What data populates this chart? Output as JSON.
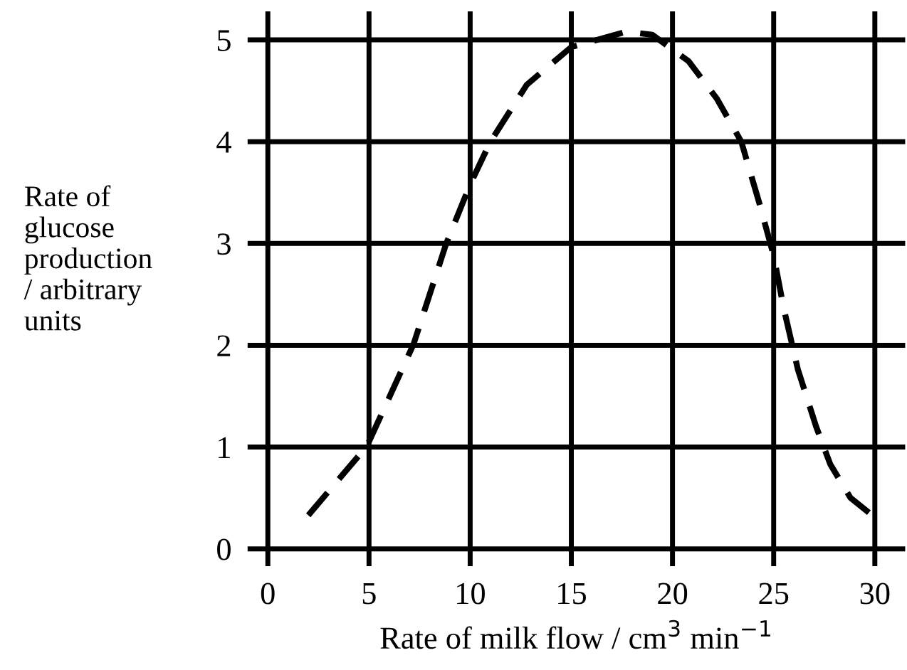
{
  "chart_data": {
    "type": "line",
    "xlabel": "Rate of milk flow / cm$^{3}$ min$^{−1}$",
    "ylabel": "Rate of\nglucose\nproduction\n/ arbitrary\nunits",
    "x": [
      2.0,
      4.9,
      7.2,
      8.8,
      10,
      11,
      12.8,
      15,
      17.7,
      19,
      20.8,
      22.2,
      23.4,
      24.3,
      25,
      25.5,
      26.2,
      27.1,
      27.8,
      28.8,
      30
    ],
    "series": [
      {
        "color": "#000000",
        "values": [
          0.33,
          1.01,
          2.01,
          2.99,
          3.58,
          4.0,
          4.56,
          4.93,
          5.08,
          5.05,
          4.79,
          4.42,
          4.0,
          3.39,
          2.88,
          2.36,
          1.76,
          1.2,
          0.83,
          0.5,
          0.31
        ]
      }
    ],
    "xlim": [
      -1,
      31.5
    ],
    "ylim": [
      -0.17,
      5.28
    ],
    "xticks": [
      0,
      5,
      10,
      15,
      20,
      25,
      30
    ],
    "yticks": [
      0,
      1,
      2,
      3,
      4,
      5
    ],
    "grid": true,
    "legend": false,
    "marker": "none",
    "line_style": "dashed"
  }
}
